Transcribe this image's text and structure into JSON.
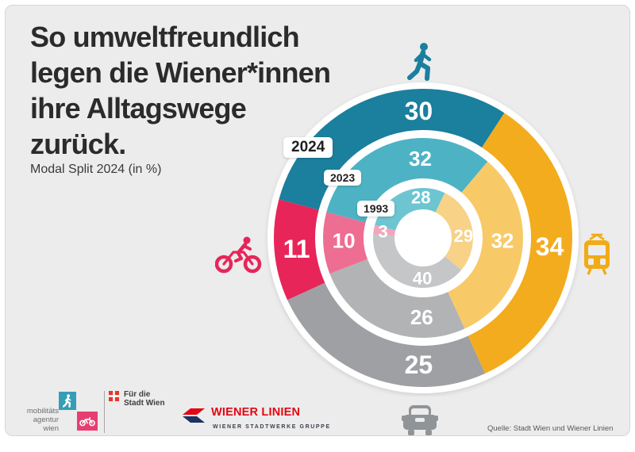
{
  "canvas": {
    "bg": "#ececec"
  },
  "header": {
    "title_lines": [
      "So umweltfreundlich",
      "legen die Wiener*innen",
      "ihre Alltagswege",
      "zurück."
    ],
    "subtitle": "Modal Split 2024 (in %)"
  },
  "chart_data": {
    "type": "pie",
    "variant": "concentric-donut-rings",
    "unit": "%",
    "title": "Modal Split 2024 (in %)",
    "categories": [
      "pedestrian",
      "public-transport",
      "car",
      "bicycle"
    ],
    "category_icons": [
      "pedestrian-icon",
      "tram-icon",
      "car-icon",
      "bicycle-icon"
    ],
    "start_angle_deg": 285,
    "clockwise": true,
    "rings": [
      {
        "year": "2024",
        "values": [
          30,
          34,
          25,
          11
        ],
        "colors": [
          "#1b7f9e",
          "#f3ac1e",
          "#9ea0a3",
          "#e72559"
        ]
      },
      {
        "year": "2023",
        "values": [
          32,
          32,
          26,
          10
        ],
        "colors": [
          "#4db3c4",
          "#f7ca67",
          "#b1b3b5",
          "#ee6d92"
        ]
      },
      {
        "year": "1993",
        "values": [
          28,
          29,
          40,
          3
        ],
        "colors": [
          "#6ec5d2",
          "#f7d287",
          "#c5c6c8",
          "#f2a4bb"
        ]
      }
    ],
    "value_text_color": "#ffffff"
  },
  "mode_icons": {
    "pedestrian_color": "#1b7f9e",
    "tram_color": "#f2ab16",
    "car_color": "#919497",
    "bicycle_color": "#e72559"
  },
  "footer": {
    "mobilitaetsagentur_lines": [
      "mobilitäts",
      "agentur",
      "wien"
    ],
    "stadt_wien_lines": [
      "Für die",
      "Stadt Wien"
    ],
    "wiener_linien_title": "WIENER LINIEN",
    "wiener_linien_subtitle": "WIENER STADTWERKE GRUPPE",
    "source": "Quelle: Stadt Wien und Wiener Linien"
  }
}
